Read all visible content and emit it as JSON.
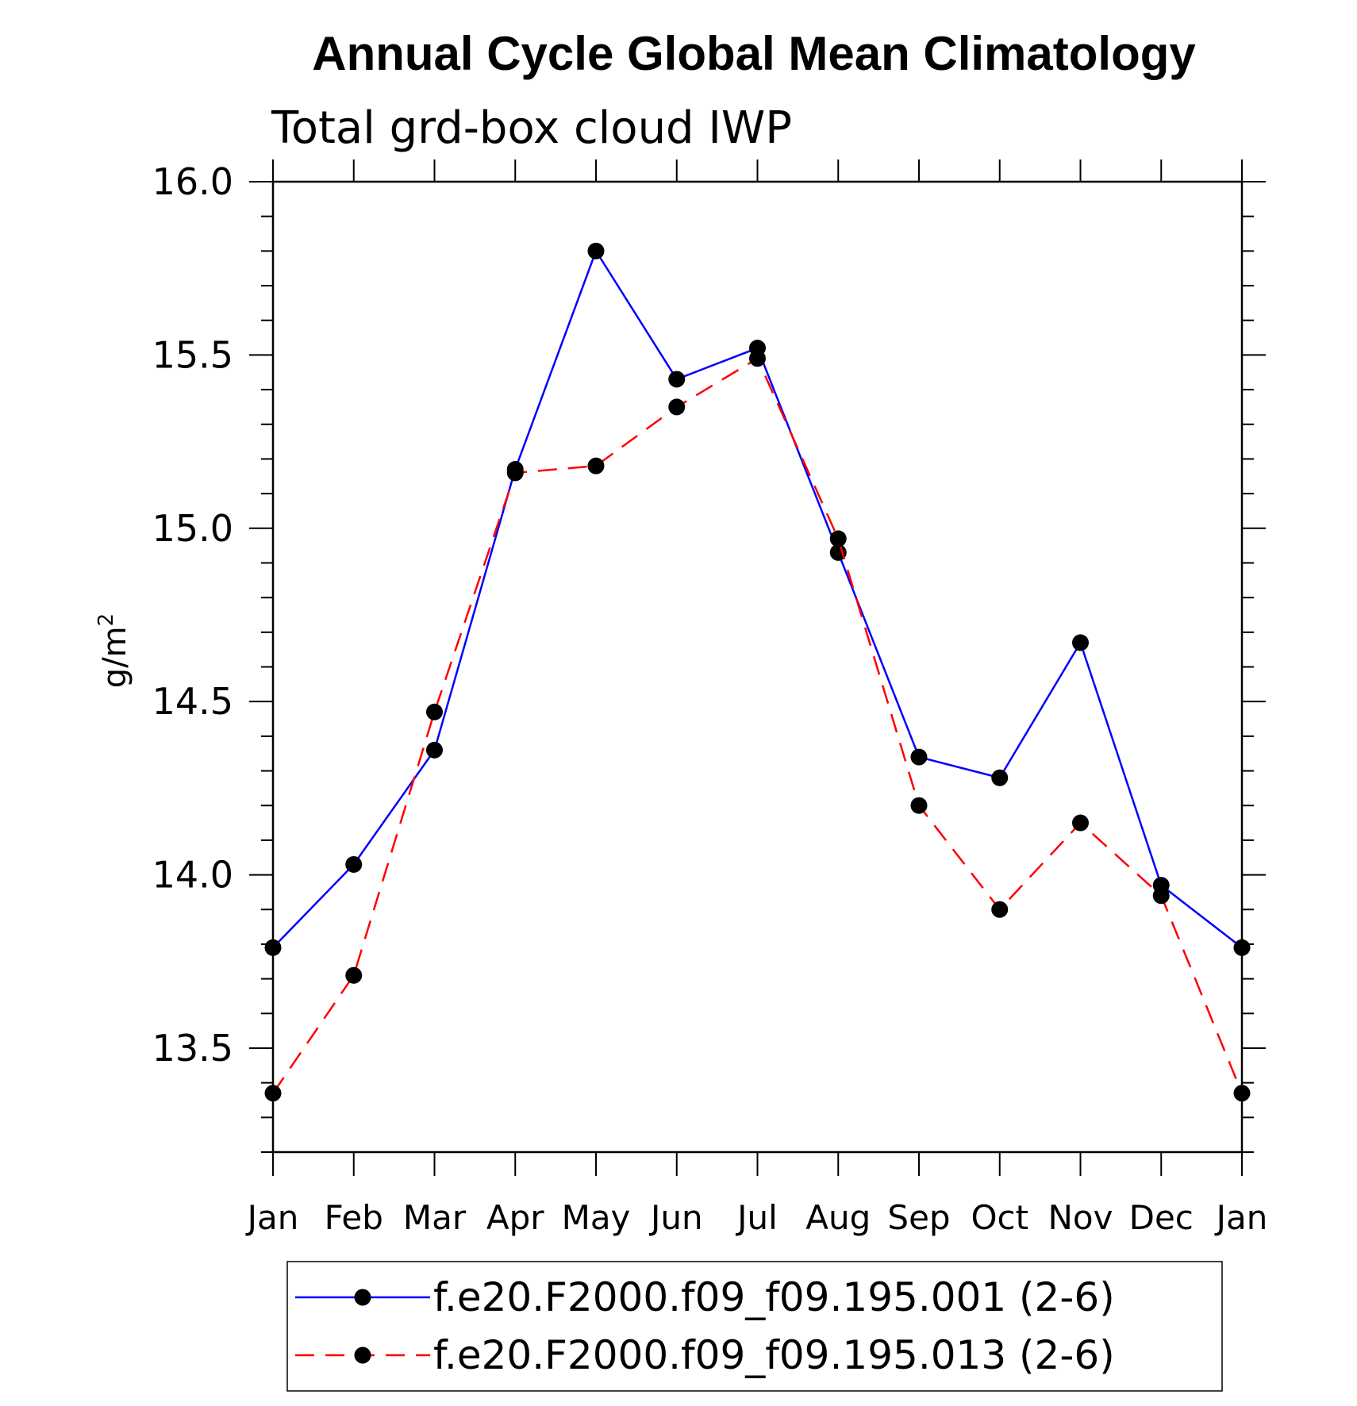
{
  "chart_data": {
    "type": "line",
    "title": "Annual Cycle Global Mean Climatology",
    "subtitle": "Total grd-box cloud IWP",
    "xlabel": "",
    "ylabel": "g/m",
    "ylabel_superscript": "2",
    "categories": [
      "Jan",
      "Feb",
      "Mar",
      "Apr",
      "May",
      "Jun",
      "Jul",
      "Aug",
      "Sep",
      "Oct",
      "Nov",
      "Dec",
      "Jan"
    ],
    "ylim": [
      13.2,
      16.0
    ],
    "yticks": [
      "16.0",
      "15.5",
      "15.0",
      "14.5",
      "14.0",
      "13.5"
    ],
    "ytick_values": [
      16.0,
      15.5,
      15.0,
      14.5,
      14.0,
      13.5
    ],
    "grid": false,
    "legend_position": "bottom",
    "series": [
      {
        "name": "f.e20.F2000.f09_f09.195.001 (2-6)",
        "color": "#0000ff",
        "line_style": "solid",
        "marker": "filled-circle",
        "values": [
          13.79,
          14.03,
          14.36,
          15.17,
          15.8,
          15.43,
          15.52,
          14.93,
          14.34,
          14.28,
          14.67,
          13.97,
          13.79
        ]
      },
      {
        "name": "f.e20.F2000.f09_f09.195.013 (2-6)",
        "color": "#ff0000",
        "line_style": "dashed",
        "marker": "filled-circle",
        "values": [
          13.37,
          13.71,
          14.47,
          15.16,
          15.18,
          15.35,
          15.49,
          14.97,
          14.2,
          13.9,
          14.15,
          13.94,
          13.37
        ]
      }
    ]
  }
}
